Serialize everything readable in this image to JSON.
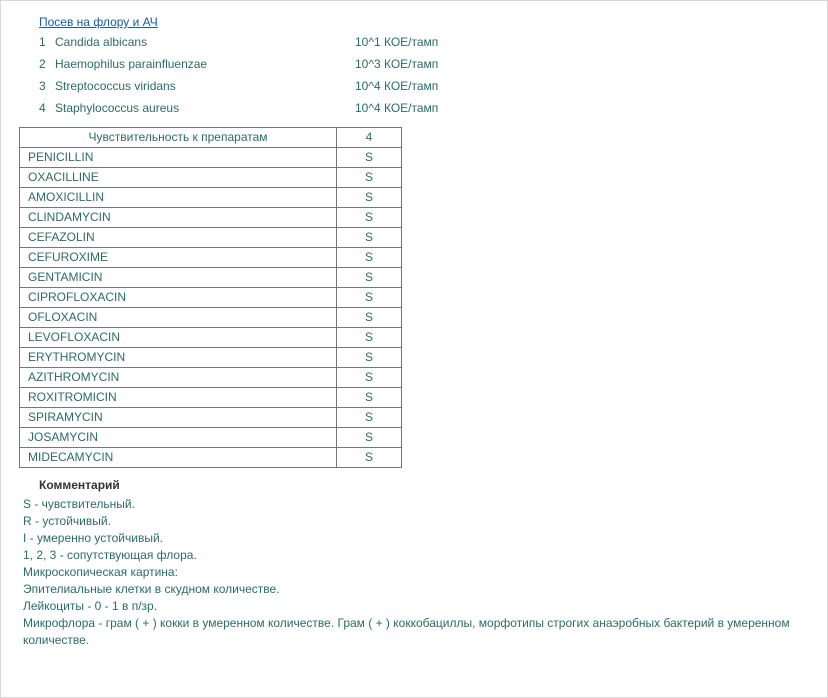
{
  "title": "Посев на флору и АЧ",
  "flora": [
    {
      "n": "1",
      "name": "Candida albicans",
      "value": "10^1 КОЕ/тамп"
    },
    {
      "n": "2",
      "name": "Haemophilus parainfluenzae",
      "value": "10^3 КОЕ/тамп"
    },
    {
      "n": "3",
      "name": "Streptococcus viridans",
      "value": "10^4 КОЕ/тамп"
    },
    {
      "n": "4",
      "name": "Staphylococcus aureus",
      "value": "10^4 КОЕ/тамп"
    }
  ],
  "sensitivity": {
    "header_name": "Чувствительность к препаратам",
    "header_col": "4",
    "rows": [
      {
        "name": "PENICILLIN",
        "v": "S"
      },
      {
        "name": "OXACILLINE",
        "v": "S"
      },
      {
        "name": "AMOXICILLIN",
        "v": "S"
      },
      {
        "name": "CLINDAMYCIN",
        "v": "S"
      },
      {
        "name": "CEFAZOLIN",
        "v": "S"
      },
      {
        "name": "CEFUROXIME",
        "v": "S"
      },
      {
        "name": "GENTAMICIN",
        "v": "S"
      },
      {
        "name": "CIPROFLOXACIN",
        "v": "S"
      },
      {
        "name": "OFLOXACIN",
        "v": "S"
      },
      {
        "name": "LEVOFLOXACIN",
        "v": "S"
      },
      {
        "name": "ERYTHROMYCIN",
        "v": "S"
      },
      {
        "name": "AZITHROMYCIN",
        "v": "S"
      },
      {
        "name": "ROXITROMICIN",
        "v": "S"
      },
      {
        "name": "SPIRAMYCIN",
        "v": "S"
      },
      {
        "name": "JOSAMYCIN",
        "v": "S"
      },
      {
        "name": "MIDECAMYCIN",
        "v": "S"
      }
    ]
  },
  "comment_title": "Комментарий",
  "comment_lines": [
    "S - чувствительный.",
    "R - устойчивый.",
    "I - умеренно устойчивый.",
    "1, 2, 3 - сопутствующая флора.",
    "Микроскопическая картина:",
    "Эпителиальные клетки в скудном количестве.",
    "Лейкоциты - 0 - 1 в п/зр.",
    "Микрофлора - грам ( + ) кокки в умеренном количестве. Грам ( + ) коккобациллы, морфотипы строгих анаэробных бактерий в умеренном количестве."
  ],
  "colors": {
    "text": "#2b6b6b",
    "link": "#1a5aaa",
    "border": "#777777",
    "background": "#ffffff"
  }
}
